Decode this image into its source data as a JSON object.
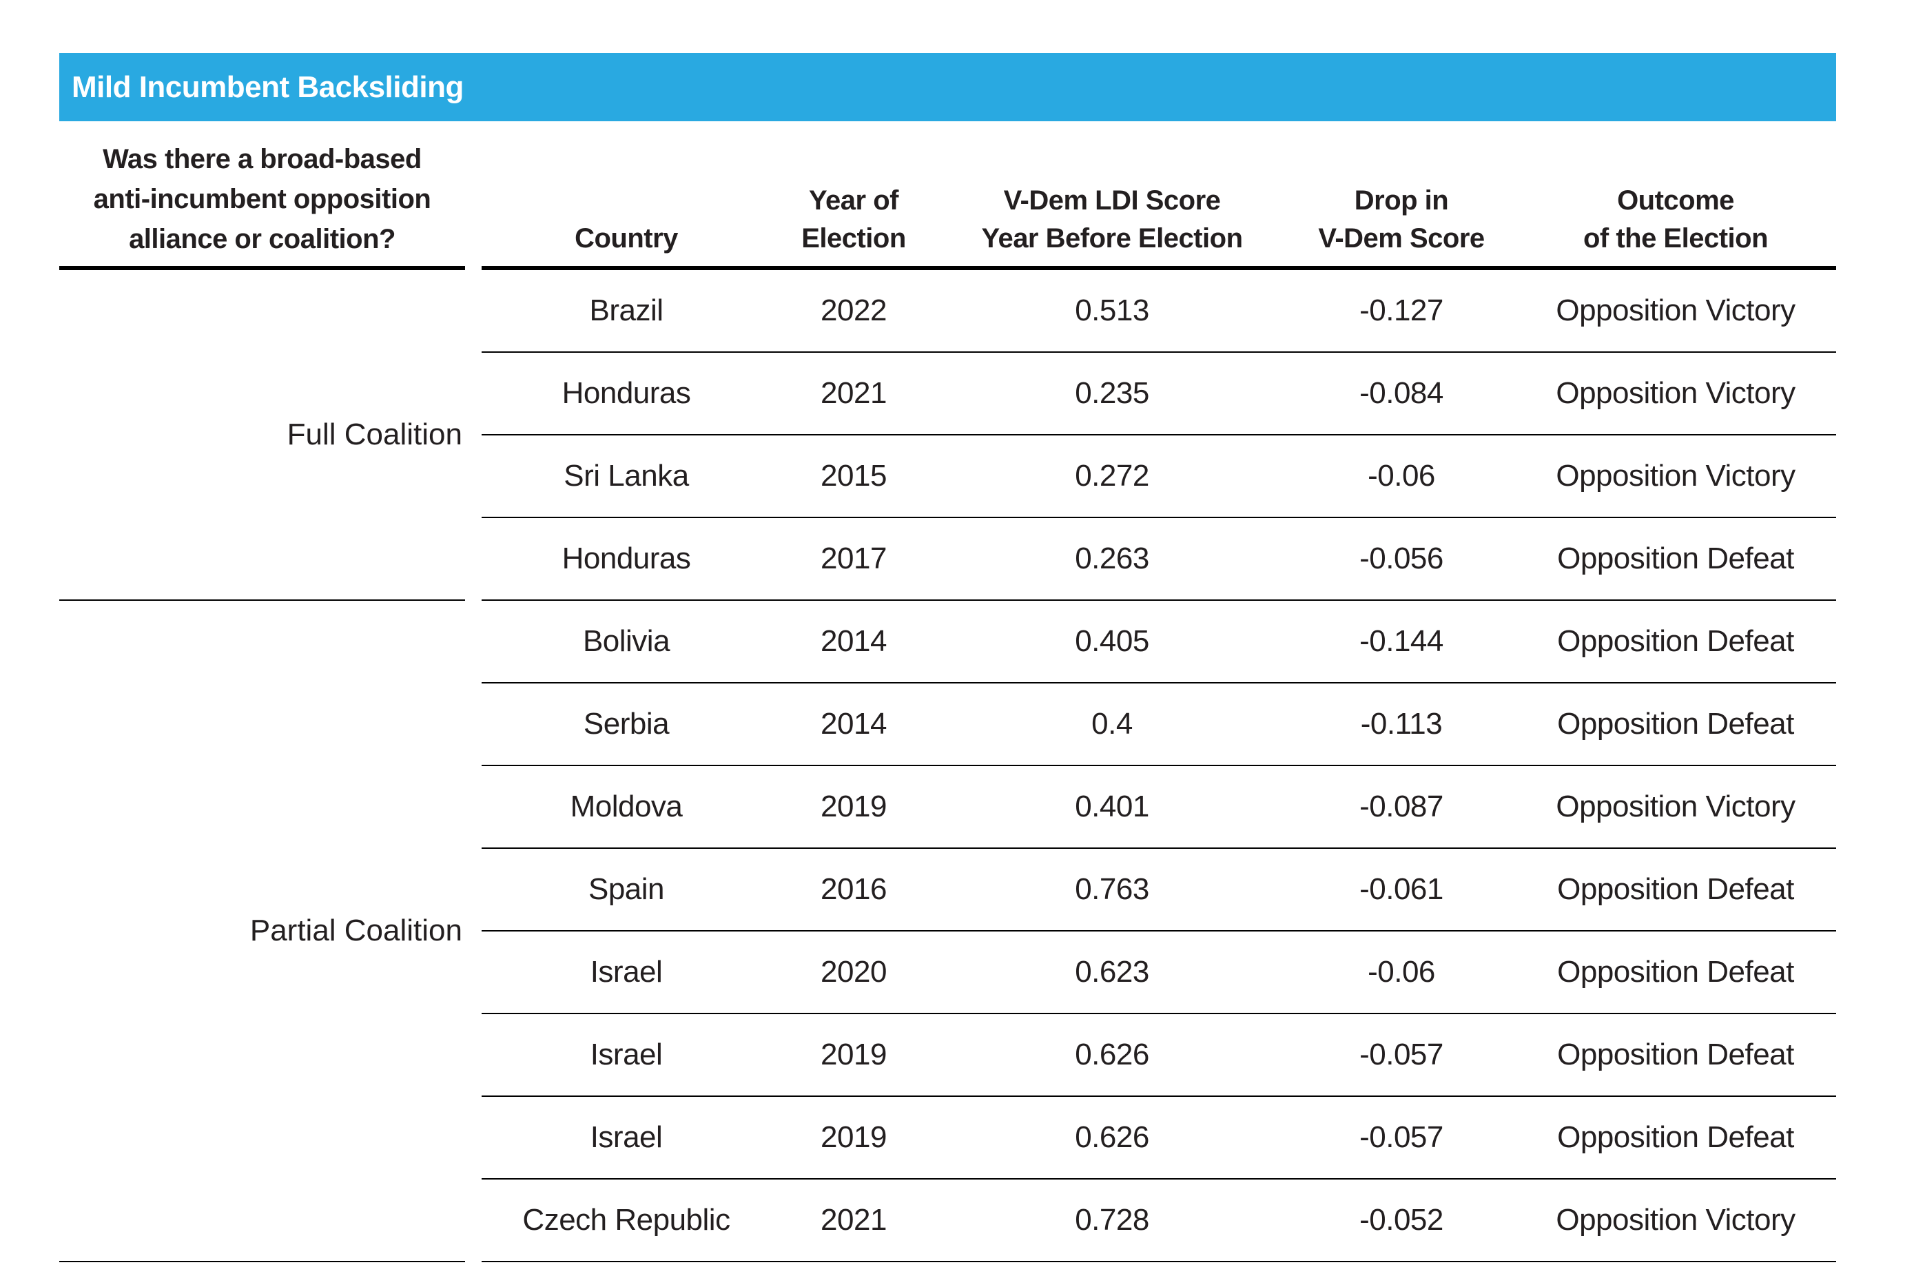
{
  "title_bar": {
    "title": "Mild Incumbent Backsliding",
    "bg_color": "#29a9e1",
    "text_color": "#ffffff"
  },
  "table": {
    "left_header": {
      "line1": "Was there a broad-based",
      "line2": "anti-incumbent opposition",
      "line3": "alliance or coalition?"
    },
    "headers": {
      "country": "Country",
      "year_line1": "Year of",
      "year_line2": "Election",
      "ldi_line1": "V-Dem LDI Score",
      "ldi_line2": "Year Before Election",
      "drop_line1": "Drop in",
      "drop_line2": "V-Dem Score",
      "outcome_line1": "Outcome",
      "outcome_line2": "of the Election"
    },
    "groups": [
      {
        "label": "Full Coalition",
        "rows": [
          {
            "country": "Brazil",
            "year": "2022",
            "ldi_score": "0.513",
            "drop": "-0.127",
            "outcome": "Opposition Victory"
          },
          {
            "country": "Honduras",
            "year": "2021",
            "ldi_score": "0.235",
            "drop": "-0.084",
            "outcome": "Opposition Victory"
          },
          {
            "country": "Sri Lanka",
            "year": "2015",
            "ldi_score": "0.272",
            "drop": "-0.06",
            "outcome": "Opposition Victory"
          },
          {
            "country": "Honduras",
            "year": "2017",
            "ldi_score": "0.263",
            "drop": "-0.056",
            "outcome": "Opposition Defeat"
          }
        ]
      },
      {
        "label": "Partial Coalition",
        "rows": [
          {
            "country": "Bolivia",
            "year": "2014",
            "ldi_score": "0.405",
            "drop": "-0.144",
            "outcome": "Opposition Defeat"
          },
          {
            "country": "Serbia",
            "year": "2014",
            "ldi_score": "0.4",
            "drop": "-0.113",
            "outcome": "Opposition Defeat"
          },
          {
            "country": "Moldova",
            "year": "2019",
            "ldi_score": "0.401",
            "drop": "-0.087",
            "outcome": "Opposition Victory"
          },
          {
            "country": "Spain",
            "year": "2016",
            "ldi_score": "0.763",
            "drop": "-0.061",
            "outcome": "Opposition Defeat"
          },
          {
            "country": "Israel",
            "year": "2020",
            "ldi_score": "0.623",
            "drop": "-0.06",
            "outcome": "Opposition Defeat"
          },
          {
            "country": "Israel",
            "year": "2019",
            "ldi_score": "0.626",
            "drop": "-0.057",
            "outcome": "Opposition Defeat"
          },
          {
            "country": "Israel",
            "year": "2019",
            "ldi_score": "0.626",
            "drop": "-0.057",
            "outcome": "Opposition Defeat"
          },
          {
            "country": "Czech Republic",
            "year": "2021",
            "ldi_score": "0.728",
            "drop": "-0.052",
            "outcome": "Opposition Victory"
          }
        ]
      }
    ]
  },
  "chart_data": {
    "type": "table",
    "title": "Mild Incumbent Backsliding",
    "group_column": "Was there a broad-based anti-incumbent opposition alliance or coalition?",
    "columns": [
      "Country",
      "Year of Election",
      "V-Dem LDI Score Year Before Election",
      "Drop in V-Dem Score",
      "Outcome of the Election"
    ],
    "rows": [
      [
        "Full Coalition",
        "Brazil",
        2022,
        0.513,
        -0.127,
        "Opposition Victory"
      ],
      [
        "Full Coalition",
        "Honduras",
        2021,
        0.235,
        -0.084,
        "Opposition Victory"
      ],
      [
        "Full Coalition",
        "Sri Lanka",
        2015,
        0.272,
        -0.06,
        "Opposition Victory"
      ],
      [
        "Full Coalition",
        "Honduras",
        2017,
        0.263,
        -0.056,
        "Opposition Defeat"
      ],
      [
        "Partial Coalition",
        "Bolivia",
        2014,
        0.405,
        -0.144,
        "Opposition Defeat"
      ],
      [
        "Partial Coalition",
        "Serbia",
        2014,
        0.4,
        -0.113,
        "Opposition Defeat"
      ],
      [
        "Partial Coalition",
        "Moldova",
        2019,
        0.401,
        -0.087,
        "Opposition Victory"
      ],
      [
        "Partial Coalition",
        "Spain",
        2016,
        0.763,
        -0.061,
        "Opposition Defeat"
      ],
      [
        "Partial Coalition",
        "Israel",
        2020,
        0.623,
        -0.06,
        "Opposition Defeat"
      ],
      [
        "Partial Coalition",
        "Israel",
        2019,
        0.626,
        -0.057,
        "Opposition Defeat"
      ],
      [
        "Partial Coalition",
        "Israel",
        2019,
        0.626,
        -0.057,
        "Opposition Defeat"
      ],
      [
        "Partial Coalition",
        "Czech Republic",
        2021,
        0.728,
        -0.052,
        "Opposition Victory"
      ]
    ]
  }
}
